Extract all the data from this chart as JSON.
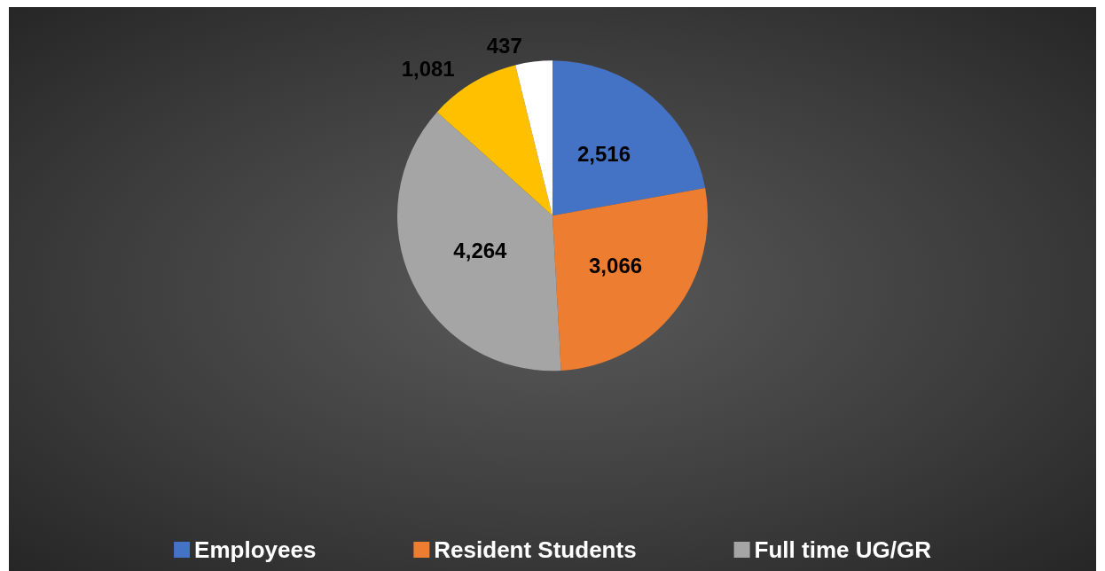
{
  "chart_data": {
    "type": "pie",
    "categories": [
      "Employees",
      "Resident Students",
      "Full time UG/GR",
      null,
      null
    ],
    "values": [
      2516,
      3066,
      4264,
      1081,
      437
    ],
    "colors": [
      "#4472c4",
      "#ed7d31",
      "#a5a5a5",
      "#ffc000",
      "#ffffff"
    ],
    "value_labels": [
      "2,516",
      "3,066",
      "4,264",
      "1,081",
      "437"
    ],
    "legend": "bottom"
  }
}
